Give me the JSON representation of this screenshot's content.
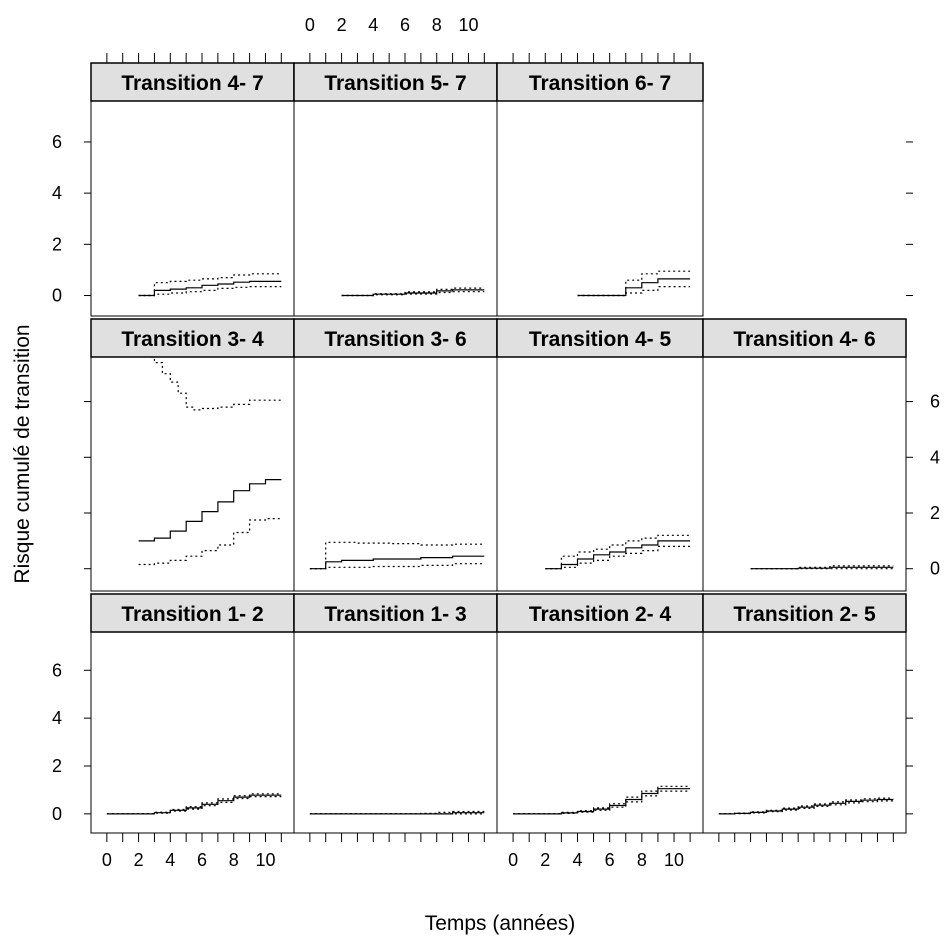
{
  "chart_data": {
    "type": "line",
    "xlabel": "Temps (années)",
    "ylabel": "Risque cumulé de transition",
    "xlim": [
      -1,
      11.8
    ],
    "ylim": [
      -0.8,
      7.6
    ],
    "x_ticks": [
      0,
      2,
      4,
      6,
      8,
      10
    ],
    "x_minor_ticks": [
      0,
      1,
      2,
      3,
      4,
      5,
      6,
      7,
      8,
      9,
      10,
      11
    ],
    "y_ticks": [
      0,
      2,
      4,
      6
    ],
    "line_styles": {
      "estimate": "solid",
      "confidence_bounds": "dotted"
    },
    "panels": [
      {
        "strip": "Transition 1- 2",
        "row": 0,
        "col": 0,
        "estimate": [
          [
            0,
            0
          ],
          [
            2,
            0
          ],
          [
            3,
            0.05
          ],
          [
            4,
            0.15
          ],
          [
            5,
            0.25
          ],
          [
            6,
            0.4
          ],
          [
            7,
            0.55
          ],
          [
            8,
            0.7
          ],
          [
            9,
            0.78
          ],
          [
            11,
            0.78
          ]
        ],
        "lower": [
          [
            0,
            0
          ],
          [
            2,
            0
          ],
          [
            3,
            0.03
          ],
          [
            4,
            0.12
          ],
          [
            5,
            0.2
          ],
          [
            6,
            0.34
          ],
          [
            7,
            0.48
          ],
          [
            8,
            0.64
          ],
          [
            9,
            0.72
          ],
          [
            11,
            0.72
          ]
        ],
        "upper": [
          [
            0,
            0
          ],
          [
            2,
            0
          ],
          [
            3,
            0.07
          ],
          [
            4,
            0.18
          ],
          [
            5,
            0.3
          ],
          [
            6,
            0.46
          ],
          [
            7,
            0.62
          ],
          [
            8,
            0.76
          ],
          [
            9,
            0.84
          ],
          [
            11,
            0.84
          ]
        ]
      },
      {
        "strip": "Transition 1- 3",
        "row": 0,
        "col": 1,
        "estimate": [
          [
            0,
            0
          ],
          [
            8,
            0
          ],
          [
            9,
            0.05
          ],
          [
            11,
            0.05
          ]
        ],
        "lower": [
          [
            0,
            0
          ],
          [
            11,
            0
          ]
        ],
        "upper": [
          [
            0,
            0
          ],
          [
            7,
            0.02
          ],
          [
            8,
            0.06
          ],
          [
            9,
            0.1
          ],
          [
            11,
            0.1
          ]
        ]
      },
      {
        "strip": "Transition 2- 4",
        "row": 0,
        "col": 2,
        "estimate": [
          [
            0,
            0
          ],
          [
            2,
            0
          ],
          [
            3,
            0.04
          ],
          [
            4,
            0.1
          ],
          [
            5,
            0.2
          ],
          [
            6,
            0.35
          ],
          [
            7,
            0.6
          ],
          [
            8,
            0.85
          ],
          [
            9,
            1.05
          ],
          [
            11,
            1.05
          ]
        ],
        "lower": [
          [
            0,
            0
          ],
          [
            2,
            0
          ],
          [
            3,
            0.02
          ],
          [
            4,
            0.07
          ],
          [
            5,
            0.15
          ],
          [
            6,
            0.28
          ],
          [
            7,
            0.5
          ],
          [
            8,
            0.75
          ],
          [
            9,
            0.95
          ],
          [
            11,
            0.95
          ]
        ],
        "upper": [
          [
            0,
            0
          ],
          [
            2,
            0
          ],
          [
            3,
            0.06
          ],
          [
            4,
            0.13
          ],
          [
            5,
            0.25
          ],
          [
            6,
            0.42
          ],
          [
            7,
            0.7
          ],
          [
            8,
            0.95
          ],
          [
            9,
            1.15
          ],
          [
            11,
            1.15
          ]
        ]
      },
      {
        "strip": "Transition 2- 5",
        "row": 0,
        "col": 3,
        "estimate": [
          [
            0,
            0
          ],
          [
            1,
            0.02
          ],
          [
            2,
            0.06
          ],
          [
            3,
            0.12
          ],
          [
            4,
            0.2
          ],
          [
            5,
            0.28
          ],
          [
            6,
            0.36
          ],
          [
            7,
            0.44
          ],
          [
            8,
            0.52
          ],
          [
            9,
            0.57
          ],
          [
            10,
            0.6
          ],
          [
            11,
            0.6
          ]
        ],
        "lower": [
          [
            0,
            0
          ],
          [
            1,
            0.01
          ],
          [
            2,
            0.04
          ],
          [
            3,
            0.09
          ],
          [
            4,
            0.16
          ],
          [
            5,
            0.23
          ],
          [
            6,
            0.31
          ],
          [
            7,
            0.38
          ],
          [
            8,
            0.46
          ],
          [
            9,
            0.51
          ],
          [
            10,
            0.54
          ],
          [
            11,
            0.54
          ]
        ],
        "upper": [
          [
            0,
            0
          ],
          [
            1,
            0.03
          ],
          [
            2,
            0.08
          ],
          [
            3,
            0.15
          ],
          [
            4,
            0.24
          ],
          [
            5,
            0.33
          ],
          [
            6,
            0.41
          ],
          [
            7,
            0.5
          ],
          [
            8,
            0.58
          ],
          [
            9,
            0.63
          ],
          [
            10,
            0.66
          ],
          [
            11,
            0.66
          ]
        ]
      },
      {
        "strip": "Transition 3- 4",
        "row": 1,
        "col": 0,
        "estimate": [
          [
            2,
            1
          ],
          [
            3,
            1.1
          ],
          [
            4,
            1.35
          ],
          [
            5,
            1.7
          ],
          [
            6,
            2.05
          ],
          [
            7,
            2.4
          ],
          [
            8,
            2.8
          ],
          [
            9,
            3.05
          ],
          [
            10,
            3.2
          ],
          [
            11,
            3.2
          ]
        ],
        "lower": [
          [
            2,
            0.15
          ],
          [
            3,
            0.2
          ],
          [
            4,
            0.3
          ],
          [
            5,
            0.45
          ],
          [
            6,
            0.65
          ],
          [
            7,
            0.85
          ],
          [
            8,
            1.3
          ],
          [
            9,
            1.75
          ],
          [
            10,
            1.8
          ],
          [
            11,
            1.8
          ]
        ],
        "upper": [
          [
            2.8,
            7.6
          ],
          [
            3,
            7.4
          ],
          [
            3.5,
            7.0
          ],
          [
            4,
            6.7
          ],
          [
            4.5,
            6.3
          ],
          [
            5,
            5.8
          ],
          [
            5.5,
            5.7
          ],
          [
            6,
            5.75
          ],
          [
            7,
            5.8
          ],
          [
            8,
            5.9
          ],
          [
            9,
            6.05
          ],
          [
            10,
            6.05
          ],
          [
            11,
            6.05
          ]
        ]
      },
      {
        "strip": "Transition 3- 6",
        "row": 1,
        "col": 1,
        "estimate": [
          [
            0,
            0
          ],
          [
            1,
            0
          ],
          [
            1,
            0.25
          ],
          [
            2,
            0.3
          ],
          [
            4,
            0.35
          ],
          [
            7,
            0.4
          ],
          [
            9,
            0.45
          ],
          [
            11,
            0.45
          ]
        ],
        "lower": [
          [
            0,
            0
          ],
          [
            1,
            0
          ],
          [
            1,
            0.05
          ],
          [
            4,
            0.08
          ],
          [
            7,
            0.12
          ],
          [
            9,
            0.18
          ],
          [
            11,
            0.18
          ]
        ],
        "upper": [
          [
            0,
            0
          ],
          [
            1,
            0
          ],
          [
            1,
            0.95
          ],
          [
            3,
            0.92
          ],
          [
            5,
            0.9
          ],
          [
            7,
            0.85
          ],
          [
            9,
            0.88
          ],
          [
            11,
            0.88
          ]
        ]
      },
      {
        "strip": "Transition 4- 5",
        "row": 1,
        "col": 2,
        "estimate": [
          [
            2,
            0
          ],
          [
            3,
            0
          ],
          [
            3,
            0.15
          ],
          [
            4,
            0.35
          ],
          [
            5,
            0.5
          ],
          [
            6,
            0.6
          ],
          [
            7,
            0.75
          ],
          [
            8,
            0.85
          ],
          [
            9,
            1.0
          ],
          [
            11,
            1.0
          ]
        ],
        "lower": [
          [
            2,
            0
          ],
          [
            3,
            0
          ],
          [
            3,
            0.05
          ],
          [
            4,
            0.2
          ],
          [
            5,
            0.3
          ],
          [
            6,
            0.45
          ],
          [
            7,
            0.55
          ],
          [
            8,
            0.65
          ],
          [
            9,
            0.8
          ],
          [
            11,
            0.8
          ]
        ],
        "upper": [
          [
            2,
            0
          ],
          [
            3,
            0
          ],
          [
            3,
            0.45
          ],
          [
            4,
            0.6
          ],
          [
            5,
            0.7
          ],
          [
            6,
            0.85
          ],
          [
            7,
            1.0
          ],
          [
            8,
            1.1
          ],
          [
            9,
            1.2
          ],
          [
            11,
            1.2
          ]
        ]
      },
      {
        "strip": "Transition 4- 6",
        "row": 1,
        "col": 3,
        "estimate": [
          [
            2,
            0
          ],
          [
            5,
            0.02
          ],
          [
            7,
            0.05
          ],
          [
            11,
            0.05
          ]
        ],
        "lower": [
          [
            2,
            0
          ],
          [
            11,
            0.02
          ]
        ],
        "upper": [
          [
            2,
            0
          ],
          [
            5,
            0.05
          ],
          [
            7,
            0.1
          ],
          [
            11,
            0.1
          ]
        ]
      },
      {
        "strip": "Transition 4- 7",
        "row": 2,
        "col": 0,
        "estimate": [
          [
            2,
            0
          ],
          [
            3,
            0.2
          ],
          [
            4,
            0.25
          ],
          [
            5,
            0.3
          ],
          [
            6,
            0.4
          ],
          [
            7,
            0.45
          ],
          [
            8,
            0.52
          ],
          [
            9,
            0.55
          ],
          [
            11,
            0.55
          ]
        ],
        "lower": [
          [
            2,
            0
          ],
          [
            3,
            0.05
          ],
          [
            4,
            0.1
          ],
          [
            5,
            0.15
          ],
          [
            6,
            0.2
          ],
          [
            7,
            0.28
          ],
          [
            8,
            0.32
          ],
          [
            9,
            0.35
          ],
          [
            11,
            0.35
          ]
        ],
        "upper": [
          [
            2,
            0
          ],
          [
            3,
            0.5
          ],
          [
            4,
            0.55
          ],
          [
            5,
            0.6
          ],
          [
            6,
            0.65
          ],
          [
            7,
            0.7
          ],
          [
            8,
            0.8
          ],
          [
            9,
            0.85
          ],
          [
            11,
            0.85
          ]
        ]
      },
      {
        "strip": "Transition 5- 7",
        "row": 2,
        "col": 1,
        "estimate": [
          [
            2,
            0
          ],
          [
            4,
            0.05
          ],
          [
            6,
            0.1
          ],
          [
            8,
            0.18
          ],
          [
            9,
            0.22
          ],
          [
            11,
            0.22
          ]
        ],
        "lower": [
          [
            2,
            0
          ],
          [
            4,
            0.03
          ],
          [
            6,
            0.06
          ],
          [
            8,
            0.12
          ],
          [
            9,
            0.15
          ],
          [
            11,
            0.15
          ]
        ],
        "upper": [
          [
            2,
            0
          ],
          [
            4,
            0.07
          ],
          [
            6,
            0.14
          ],
          [
            8,
            0.24
          ],
          [
            9,
            0.29
          ],
          [
            11,
            0.29
          ]
        ]
      },
      {
        "strip": "Transition 6- 7",
        "row": 2,
        "col": 2,
        "estimate": [
          [
            4,
            0
          ],
          [
            7,
            0
          ],
          [
            7,
            0.3
          ],
          [
            8,
            0.5
          ],
          [
            9,
            0.65
          ],
          [
            11,
            0.65
          ]
        ],
        "lower": [
          [
            4,
            0
          ],
          [
            7,
            0
          ],
          [
            7,
            0.1
          ],
          [
            8,
            0.2
          ],
          [
            9,
            0.35
          ],
          [
            11,
            0.35
          ]
        ],
        "upper": [
          [
            4,
            0
          ],
          [
            7,
            0
          ],
          [
            7,
            0.6
          ],
          [
            8,
            0.85
          ],
          [
            9,
            0.95
          ],
          [
            11,
            0.95
          ]
        ]
      }
    ]
  }
}
